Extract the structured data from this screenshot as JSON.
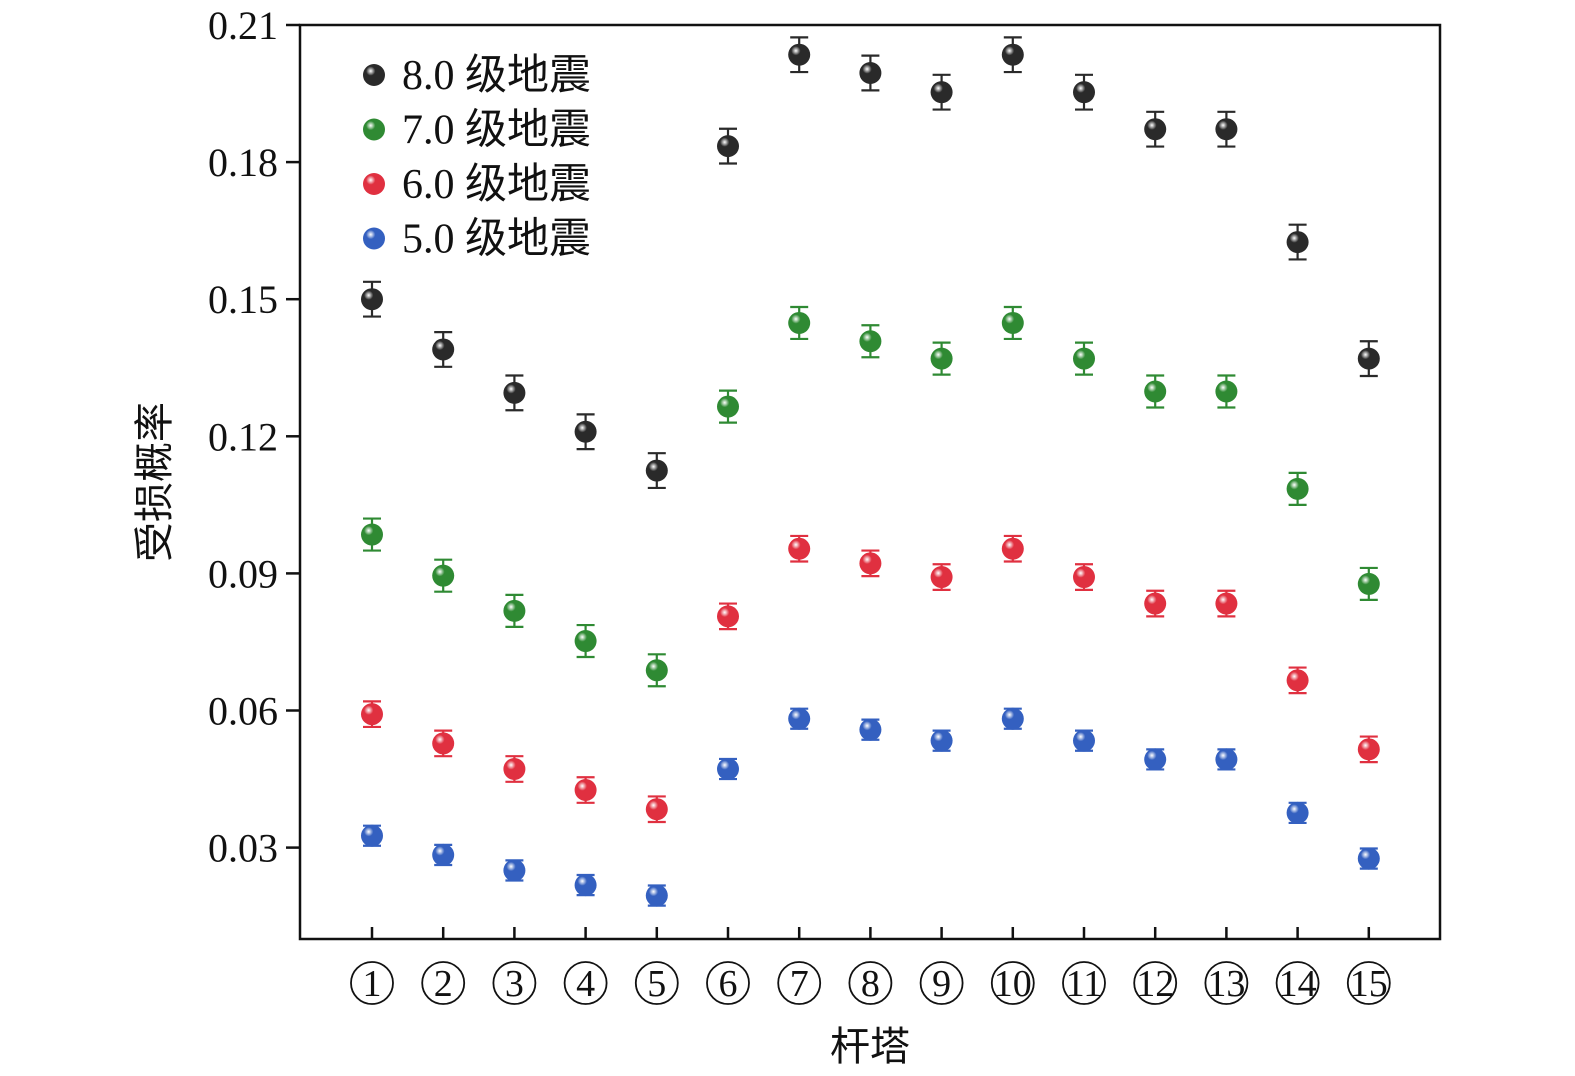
{
  "chart_data": {
    "type": "scatter",
    "xlabel": "杆塔",
    "ylabel": "受损概率",
    "categories": [
      "①",
      "②",
      "③",
      "④",
      "⑤",
      "⑥",
      "⑦",
      "⑧",
      "⑨",
      "⑩",
      "⑪",
      "⑫",
      "⑬",
      "⑭",
      "⑮"
    ],
    "ylim": [
      0.01,
      0.21
    ],
    "yticks": [
      0.03,
      0.06,
      0.09,
      0.12,
      0.15,
      0.18,
      0.21
    ],
    "ytick_labels": [
      "0.03",
      "0.06",
      "0.09",
      "0.12",
      "0.15",
      "0.18",
      "0.21"
    ],
    "legend_position": "top-left",
    "error_bars": true,
    "series": [
      {
        "name": "8.0 级地震",
        "color": "#2a2a2a",
        "error": 0.0038,
        "values": [
          0.15,
          0.139,
          0.1295,
          0.121,
          0.1125,
          0.1835,
          0.2035,
          0.1995,
          0.1953,
          0.2035,
          0.1953,
          0.1872,
          0.1872,
          0.1625,
          0.137
        ]
      },
      {
        "name": "7.0 级地震",
        "color": "#2f8a33",
        "error": 0.0035,
        "values": [
          0.0985,
          0.0895,
          0.0818,
          0.0752,
          0.0688,
          0.1265,
          0.1448,
          0.1408,
          0.137,
          0.1448,
          0.137,
          0.1298,
          0.1298,
          0.1085,
          0.0877
        ]
      },
      {
        "name": "6.0 级地震",
        "color": "#e03040",
        "error": 0.0028,
        "values": [
          0.0592,
          0.0528,
          0.0472,
          0.0426,
          0.0384,
          0.0806,
          0.0954,
          0.0922,
          0.0892,
          0.0954,
          0.0892,
          0.0834,
          0.0834,
          0.0666,
          0.0515
        ]
      },
      {
        "name": "5.0 级地震",
        "color": "#3460c0",
        "error": 0.0022,
        "values": [
          0.0326,
          0.0284,
          0.025,
          0.0218,
          0.0195,
          0.0472,
          0.0582,
          0.0558,
          0.0534,
          0.0582,
          0.0534,
          0.0493,
          0.0493,
          0.0376,
          0.0276
        ]
      }
    ]
  }
}
